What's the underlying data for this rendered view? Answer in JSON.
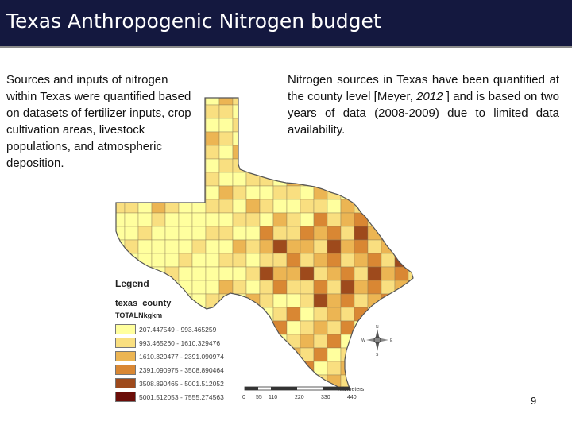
{
  "slide": {
    "title": "Texas Anthropogenic Nitrogen budget",
    "left_text": "Sources and inputs of nitrogen within Texas were quantified based on datasets of fertilizer inputs, crop cultivation areas, livestock populations, and atmospheric deposition.",
    "right_text_before": "Nitrogen sources in Texas have been quantified at the county level [Meyer, ",
    "right_text_year": "2012",
    "right_text_after": " ] and is based on two years of data (2008-2009) due to limited data availability.",
    "page_number": "9"
  },
  "legend": {
    "title": "Legend",
    "layer": "texas_county",
    "field": "TOTALNkgkm",
    "classes": [
      {
        "label": "207.447549 - 993.465259",
        "color": "#ffff9e"
      },
      {
        "label": "993.465260 - 1610.329476",
        "color": "#f9df80"
      },
      {
        "label": "1610.329477 - 2391.090974",
        "color": "#ecb553"
      },
      {
        "label": "2391.090975 - 3508.890464",
        "color": "#d98733"
      },
      {
        "label": "3508.890465 - 5001.512052",
        "color": "#9e4a1c"
      },
      {
        "label": "5001.512053 - 7555.274563",
        "color": "#6b0d08"
      }
    ]
  },
  "scale": {
    "ticks": [
      "0",
      "55",
      "110",
      "220",
      "330",
      "440"
    ],
    "unit": "Kilometers"
  },
  "compass": {
    "n": "N",
    "s": "S",
    "e": "E",
    "w": "W"
  }
}
